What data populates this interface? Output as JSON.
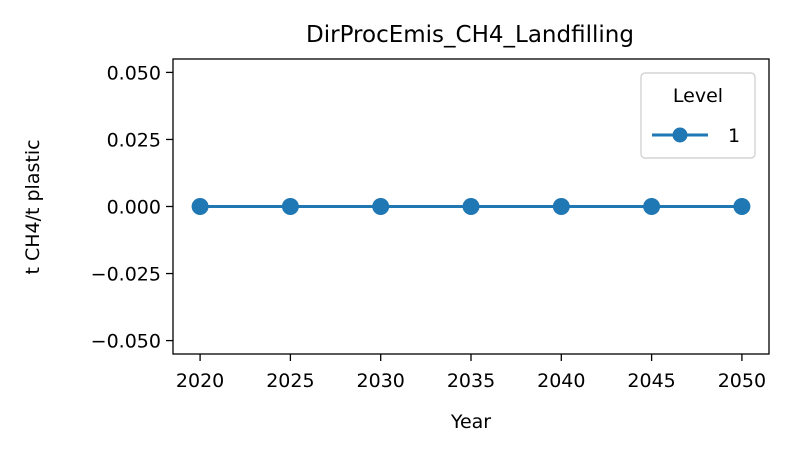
{
  "chart_data": {
    "type": "line",
    "title": "DirProcEmis_CH4_Landfilling",
    "xlabel": "Year",
    "ylabel": "t CH4/t plastic",
    "x": [
      2020,
      2025,
      2030,
      2035,
      2040,
      2045,
      2050
    ],
    "x_ticks": [
      "2020",
      "2025",
      "2030",
      "2035",
      "2040",
      "2045",
      "2050"
    ],
    "y_ticks": [
      "−0.050",
      "−0.025",
      "0.000",
      "0.025",
      "0.050"
    ],
    "y_tick_values": [
      -0.05,
      -0.025,
      0.0,
      0.025,
      0.05
    ],
    "xlim": [
      2018.5,
      2051.5
    ],
    "ylim": [
      -0.055,
      0.055
    ],
    "series": [
      {
        "name": "1",
        "values": [
          0,
          0,
          0,
          0,
          0,
          0,
          0
        ],
        "color": "#1f77b4",
        "marker": "circle"
      }
    ],
    "legend": {
      "title": "Level",
      "position": "top-right"
    },
    "grid": false
  }
}
